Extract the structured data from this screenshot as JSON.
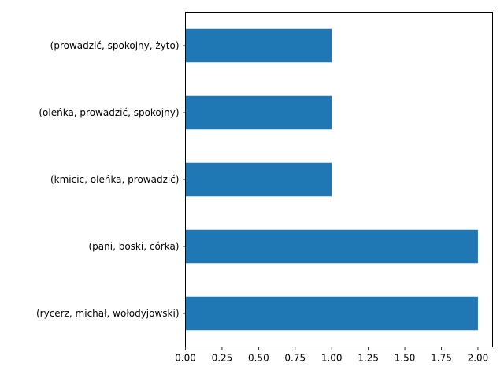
{
  "chart_data": {
    "type": "bar",
    "orientation": "horizontal",
    "categories": [
      "(rycerz, michał, wołodyjowski)",
      "(pani, boski, córka)",
      "(kmicic, oleńka, prowadzić)",
      "(oleńka, prowadzić, spokojny)",
      "(prowadzić, spokojny, żyto)"
    ],
    "values": [
      2,
      2,
      1,
      1,
      1
    ],
    "xlim": [
      0,
      2.1
    ],
    "xticks": [
      "0.00",
      "0.25",
      "0.50",
      "0.75",
      "1.00",
      "1.25",
      "1.50",
      "1.75",
      "2.00"
    ],
    "title": "",
    "xlabel": "",
    "ylabel": "",
    "grid": false,
    "bar_color": "#1f77b4"
  }
}
